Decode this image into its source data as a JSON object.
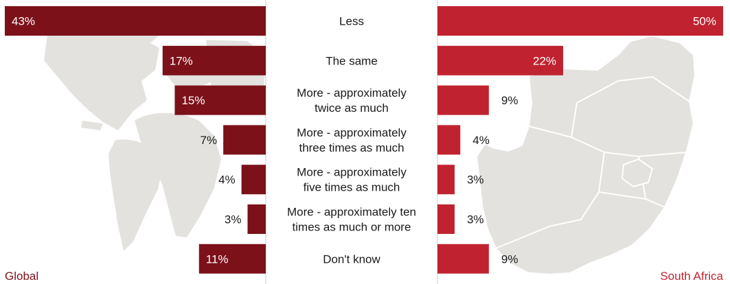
{
  "chart_data": {
    "type": "bar",
    "orientation": "horizontal",
    "layout": "back-to-back",
    "categories": [
      "Less",
      "The same",
      "More - approximately twice as much",
      "More - approximately three times as much",
      "More - approximately five times as much",
      "More - approximately ten times as much or more",
      "Don't know"
    ],
    "category_lines": [
      [
        "Less"
      ],
      [
        "The same"
      ],
      [
        "More - approximately",
        "twice as much"
      ],
      [
        "More - approximately",
        "three times as much"
      ],
      [
        "More - approximately",
        "five times as much"
      ],
      [
        "More - approximately ten",
        "times as much or more"
      ],
      [
        "Don't know"
      ]
    ],
    "series": [
      {
        "name": "Global",
        "values": [
          43,
          17,
          15,
          7,
          4,
          3,
          11
        ],
        "color": "#7c1119",
        "direction": "left"
      },
      {
        "name": "South Africa",
        "values": [
          50,
          22,
          9,
          4,
          3,
          3,
          9
        ],
        "color": "#c0232f",
        "direction": "right"
      }
    ],
    "value_suffix": "%",
    "xlim": [
      0,
      50
    ],
    "background_images": [
      "world-map",
      "south-africa-map"
    ],
    "map_color": "#e3e2df"
  },
  "panels": {
    "left_label": "Global",
    "right_label": "South Africa",
    "left_label_color": "#7c1119",
    "right_label_color": "#c0232f"
  },
  "text_color": "#1a1a1a",
  "divider_color": "#cccccc"
}
